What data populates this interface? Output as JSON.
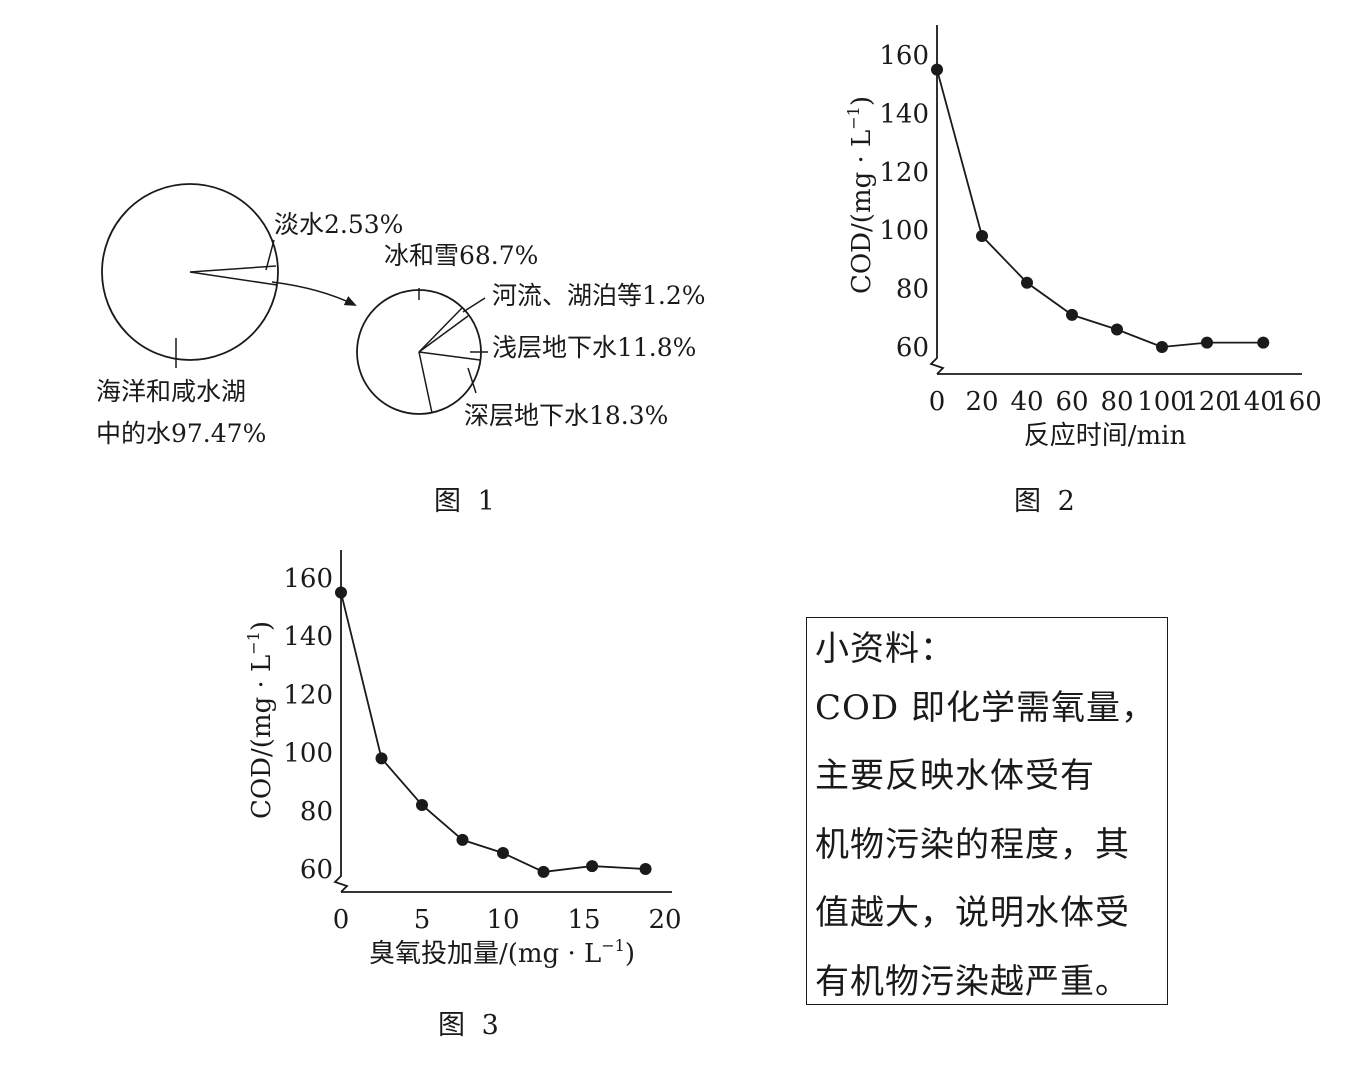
{
  "chart_data": [
    {
      "type": "pie",
      "caption": "图 1",
      "slices": [
        {
          "label": "海洋和咸水湖",
          "label2": "中的水97.47%",
          "value": 97.47
        },
        {
          "label": "淡水2.53%",
          "value": 2.53
        }
      ],
      "detail": {
        "type": "pie",
        "slices": [
          {
            "label": "冰和雪68.7%",
            "value": 68.7
          },
          {
            "label": "河流、湖泊等1.2%",
            "value": 1.2
          },
          {
            "label": "浅层地下水11.8%",
            "value": 11.8
          },
          {
            "label": "深层地下水18.3%",
            "value": 18.3
          }
        ]
      }
    },
    {
      "type": "line",
      "caption": "图 2",
      "xlabel": "反应时间/min",
      "ylabel": "COD/(mg · L",
      "ylabel_sup": "−1",
      "ylabel_close": ")",
      "xticks": [
        "0",
        "20",
        "40",
        "60",
        "80",
        "100",
        "120",
        "140",
        "160"
      ],
      "yticks": [
        "60",
        "80",
        "100",
        "120",
        "140",
        "160"
      ],
      "xlim": [
        0,
        160
      ],
      "ylim": [
        55,
        165
      ],
      "axis_break_y": true,
      "x": [
        0,
        20,
        40,
        60,
        80,
        100,
        120,
        145
      ],
      "y": [
        155,
        98,
        82,
        71,
        66,
        60,
        61.5,
        61.5
      ]
    },
    {
      "type": "line",
      "caption": "图 3",
      "xlabel": "臭氧投加量/(mg · L",
      "xlabel_sup": "−1",
      "xlabel_close": ")",
      "ylabel": "COD/(mg · L",
      "ylabel_sup": "−1",
      "ylabel_close": ")",
      "xticks": [
        "0",
        "5",
        "10",
        "15",
        "20"
      ],
      "yticks": [
        "60",
        "80",
        "100",
        "120",
        "140",
        "160"
      ],
      "xlim": [
        0,
        20
      ],
      "ylim": [
        55,
        165
      ],
      "axis_break_y": true,
      "x": [
        0,
        2.5,
        5,
        7.5,
        10,
        12.5,
        15.5,
        18.8
      ],
      "y": [
        155,
        98,
        82,
        70,
        65.5,
        59,
        61,
        60
      ]
    }
  ],
  "note": {
    "lines": [
      "小资料：",
      "COD 即化学需氧量，",
      "主要反映水体受有",
      "机物污染的程度，其",
      "值越大，说明水体受",
      "有机物污染越严重。"
    ]
  }
}
